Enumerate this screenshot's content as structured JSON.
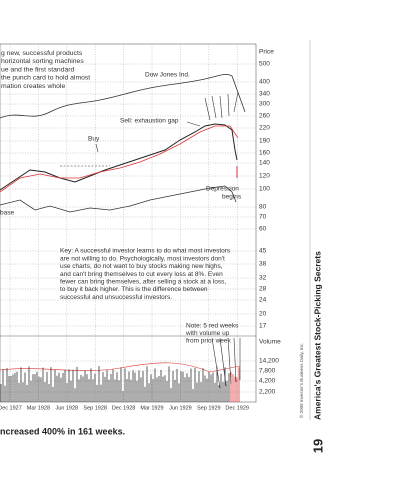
{
  "intro": {
    "lines": [
      "g new, successful products",
      "horizontal sorting machines",
      "ue and the first standard",
      "the punch card to hold almost",
      "mation creates whole"
    ]
  },
  "annotations": {
    "dow": "Dow Jones Ind.",
    "sell": "Sell: exhaustion gap",
    "buy": "Buy",
    "depression": [
      "Depression",
      "begins"
    ],
    "base": [
      "-",
      "base"
    ],
    "note": [
      "Note: 5 red weeks",
      "with volume up",
      "from prior week"
    ]
  },
  "key": {
    "lines": [
      "Key: A successful investor learns to do what most investors",
      "are not willing to do. Psychologically, most investors don't",
      "use charts, do not want to buy stocks making new highs,",
      "and can't bring themselves to cut every loss at 8%. Even",
      "fewer can bring themselves, after selling a stock at a loss,",
      "to buy it back higher. This is the difference between",
      "successful and unsuccessful investors."
    ]
  },
  "price_axis": {
    "title": "Price",
    "ticks": [
      "500",
      "400",
      "340",
      "300",
      "260",
      "220",
      "190",
      "160",
      "140",
      "120",
      "100",
      "80",
      "70",
      "60",
      "45",
      "38",
      "32",
      "28",
      "24",
      "20",
      "17"
    ]
  },
  "volume_axis": {
    "title": "Volume",
    "ticks": [
      "14,200",
      "7,800",
      "4,200",
      "2,200"
    ]
  },
  "dates": [
    "Dec 1927",
    "Mar 1928",
    "Jun 1928",
    "Sep 1928",
    "Dec 1928",
    "Mar 1929",
    "Jun 1929",
    "Sep 1929",
    "Dec 1929"
  ],
  "caption": "ncreased 400% in 161 weeks.",
  "sidebar": {
    "title": "America's Greatest Stock-Picking Secrets",
    "page": "19",
    "copyright": "© 2008 Investor's Business Daily, Inc."
  }
}
